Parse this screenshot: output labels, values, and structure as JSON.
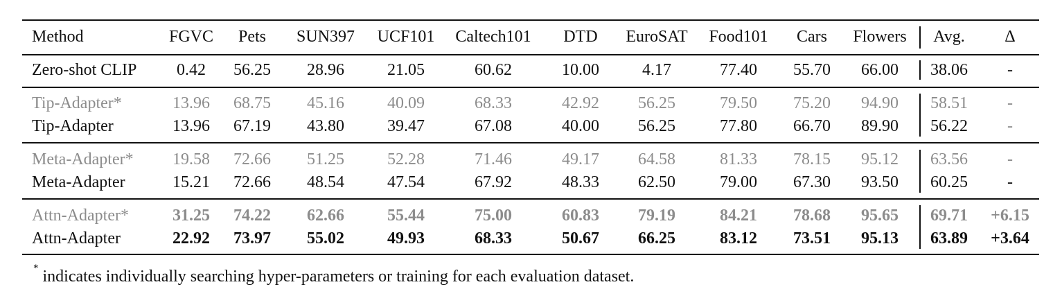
{
  "table": {
    "headers": [
      "Method",
      "FGVC",
      "Pets",
      "SUN397",
      "UCF101",
      "Caltech101",
      "DTD",
      "EuroSAT",
      "Food101",
      "Cars",
      "Flowers",
      "Avg.",
      "Δ"
    ],
    "groups": [
      {
        "rows": [
          {
            "method": "Zero-shot CLIP",
            "values": [
              "0.42",
              "56.25",
              "28.96",
              "21.05",
              "60.62",
              "10.00",
              "4.17",
              "77.40",
              "55.70",
              "66.00"
            ],
            "avg": "38.06",
            "delta": "-",
            "style": "normal"
          }
        ]
      },
      {
        "rows": [
          {
            "method": "Tip-Adapter*",
            "values": [
              "13.96",
              "68.75",
              "45.16",
              "40.09",
              "68.33",
              "42.92",
              "56.25",
              "79.50",
              "75.20",
              "94.90"
            ],
            "avg": "58.51",
            "delta": "-",
            "style": "gray"
          },
          {
            "method": "Tip-Adapter",
            "values": [
              "13.96",
              "67.19",
              "43.80",
              "39.47",
              "67.08",
              "40.00",
              "56.25",
              "77.80",
              "66.70",
              "89.90"
            ],
            "avg": "56.22",
            "delta": "-",
            "style": "normal",
            "delta_gray": true
          }
        ]
      },
      {
        "rows": [
          {
            "method": "Meta-Adapter*",
            "values": [
              "19.58",
              "72.66",
              "51.25",
              "52.28",
              "71.46",
              "49.17",
              "64.58",
              "81.33",
              "78.15",
              "95.12"
            ],
            "avg": "63.56",
            "delta": "-",
            "style": "gray"
          },
          {
            "method": "Meta-Adapter",
            "values": [
              "15.21",
              "72.66",
              "48.54",
              "47.54",
              "67.92",
              "48.33",
              "62.50",
              "79.00",
              "67.30",
              "93.50"
            ],
            "avg": "60.25",
            "delta": "-",
            "style": "normal"
          }
        ]
      },
      {
        "rows": [
          {
            "method": "Attn-Adapter*",
            "values": [
              "31.25",
              "74.22",
              "62.66",
              "55.44",
              "75.00",
              "60.83",
              "79.19",
              "84.21",
              "78.68",
              "95.65"
            ],
            "avg": "69.71",
            "delta": "+6.15",
            "style": "gray-bold"
          },
          {
            "method": "Attn-Adapter",
            "values": [
              "22.92",
              "73.97",
              "55.02",
              "49.93",
              "68.33",
              "50.67",
              "66.25",
              "83.12",
              "73.51",
              "95.13"
            ],
            "avg": "63.89",
            "delta": "+3.64",
            "style": "bold"
          }
        ]
      }
    ]
  },
  "footnote": {
    "marker": "*",
    "text": "indicates individually searching hyper-parameters or training for each evaluation dataset."
  }
}
